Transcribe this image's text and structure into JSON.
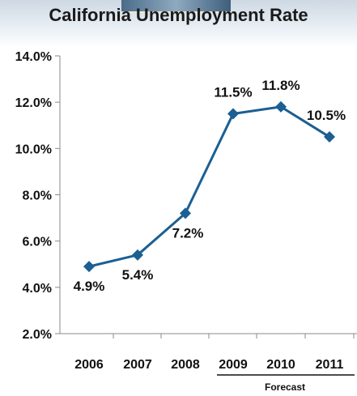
{
  "chart_data": {
    "type": "line",
    "title": "California Unemployment Rate",
    "categories": [
      "2006",
      "2007",
      "2008",
      "2009",
      "2010",
      "2011"
    ],
    "values": [
      4.9,
      5.4,
      7.2,
      11.5,
      11.8,
      10.5
    ],
    "point_labels": [
      "4.9%",
      "5.4%",
      "7.2%",
      "11.5%",
      "11.8%",
      "10.5%"
    ],
    "yticks": [
      "14.0%",
      "12.0%",
      "10.0%",
      "8.0%",
      "6.0%",
      "4.0%",
      "2.0%"
    ],
    "ylim": [
      2,
      14
    ],
    "forecast_label": "Forecast",
    "forecast_categories": [
      "2009",
      "2010",
      "2011"
    ],
    "grid": false,
    "line_color": "#1b5f93"
  }
}
